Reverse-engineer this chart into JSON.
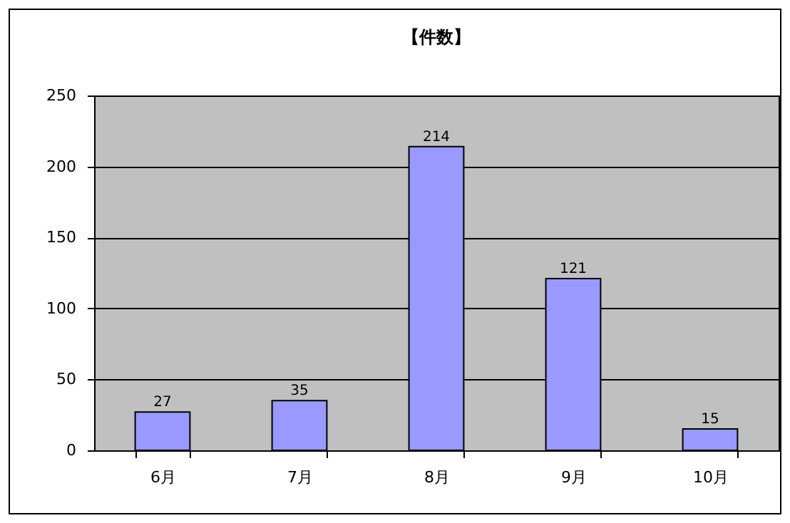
{
  "chart_data": {
    "type": "bar",
    "title": "【件数】",
    "categories": [
      "6月",
      "7月",
      "8月",
      "9月",
      "10月"
    ],
    "values": [
      27,
      35,
      214,
      121,
      15
    ],
    "color": "#9999ff",
    "ylim": [
      0,
      250
    ],
    "yticks": [
      0,
      50,
      100,
      150,
      200,
      250
    ],
    "grid": "y",
    "data_labels": true
  }
}
